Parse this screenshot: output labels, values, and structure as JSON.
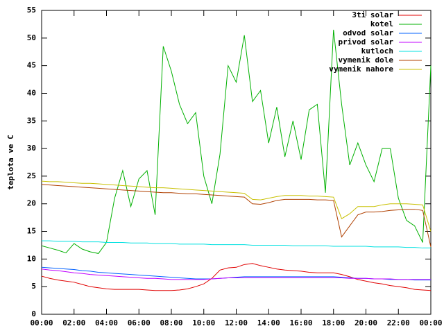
{
  "chart_data": {
    "type": "line",
    "y_label": "teplota ve C",
    "legend": "top right",
    "x": [
      0,
      0.5,
      1,
      1.5,
      2,
      2.5,
      3,
      3.5,
      4,
      4.5,
      5,
      5.5,
      6,
      6.5,
      7,
      7.5,
      8,
      8.5,
      9,
      9.5,
      10,
      10.5,
      11,
      11.5,
      12,
      12.5,
      13,
      13.5,
      14,
      14.5,
      15,
      15.5,
      16,
      16.5,
      17,
      17.5,
      18,
      18.5,
      19,
      19.5,
      20,
      20.5,
      21,
      21.5,
      22,
      22.5,
      23,
      23.5,
      24
    ],
    "xlim": [
      0,
      24
    ],
    "xticks": [
      {
        "value": 0,
        "label": "00:00"
      },
      {
        "value": 2,
        "label": "02:00"
      },
      {
        "value": 4,
        "label": "04:00"
      },
      {
        "value": 6,
        "label": "06:00"
      },
      {
        "value": 8,
        "label": "08:00"
      },
      {
        "value": 10,
        "label": "10:00"
      },
      {
        "value": 12,
        "label": "12:00"
      },
      {
        "value": 14,
        "label": "14:00"
      },
      {
        "value": 16,
        "label": "16:00"
      },
      {
        "value": 18,
        "label": "18:00"
      },
      {
        "value": 20,
        "label": "20:00"
      },
      {
        "value": 22,
        "label": "22:00"
      },
      {
        "value": 24,
        "label": "00:00"
      }
    ],
    "ylim": [
      0,
      55
    ],
    "yticks": [
      0,
      5,
      10,
      15,
      20,
      25,
      30,
      35,
      40,
      45,
      50,
      55
    ],
    "series": [
      {
        "name": "3ti solar",
        "color": "#e00000",
        "values": [
          6.9,
          6.5,
          6.2,
          6,
          5.8,
          5.4,
          5,
          4.8,
          4.6,
          4.5,
          4.5,
          4.5,
          4.5,
          4.4,
          4.3,
          4.3,
          4.3,
          4.4,
          4.6,
          5,
          5.5,
          6.5,
          8,
          8.4,
          8.5,
          9,
          9.2,
          8.8,
          8.5,
          8.2,
          8,
          7.9,
          7.8,
          7.6,
          7.5,
          7.5,
          7.5,
          7.2,
          6.8,
          6.3,
          6,
          5.7,
          5.5,
          5.2,
          5,
          4.8,
          4.5,
          4.4,
          4.3
        ]
      },
      {
        "name": "kotel",
        "color": "#00b000",
        "values": [
          12.4,
          12,
          11.6,
          11.1,
          12.8,
          11.8,
          11.3,
          11,
          13,
          21,
          26,
          19.5,
          24.5,
          26,
          18,
          48.5,
          44,
          38,
          34.5,
          36.5,
          25,
          20,
          29,
          45,
          42,
          50.5,
          38.5,
          40.5,
          31,
          37.5,
          28.5,
          35,
          28,
          37,
          38,
          22,
          51.5,
          38,
          27,
          31,
          27,
          24,
          30,
          30,
          21,
          17,
          16,
          13,
          45
        ]
      },
      {
        "name": "odvod solar",
        "color": "#0060ff",
        "values": [
          8.5,
          8.4,
          8.3,
          8.2,
          8.1,
          7.9,
          7.8,
          7.6,
          7.5,
          7.4,
          7.3,
          7.2,
          7.1,
          7,
          6.9,
          6.8,
          6.7,
          6.6,
          6.5,
          6.4,
          6.4,
          6.4,
          6.5,
          6.6,
          6.7,
          6.8,
          6.8,
          6.8,
          6.8,
          6.8,
          6.8,
          6.8,
          6.8,
          6.8,
          6.8,
          6.8,
          6.8,
          6.7,
          6.6,
          6.5,
          6.5,
          6.4,
          6.4,
          6.3,
          6.3,
          6.3,
          6.2,
          6.2,
          6.2
        ]
      },
      {
        "name": "privod solar",
        "color": "#c000ff",
        "values": [
          8.2,
          8,
          7.9,
          7.7,
          7.5,
          7.4,
          7.2,
          7.1,
          7,
          6.9,
          6.8,
          6.7,
          6.6,
          6.5,
          6.5,
          6.4,
          6.3,
          6.3,
          6.3,
          6.3,
          6.3,
          6.4,
          6.5,
          6.6,
          6.6,
          6.6,
          6.6,
          6.6,
          6.6,
          6.6,
          6.6,
          6.6,
          6.6,
          6.6,
          6.6,
          6.6,
          6.6,
          6.6,
          6.5,
          6.5,
          6.5,
          6.4,
          6.4,
          6.4,
          6.3,
          6.3,
          6.3,
          6.3,
          6.3
        ]
      },
      {
        "name": "kutloch",
        "color": "#00e0e0",
        "values": [
          13.3,
          13.3,
          13.2,
          13.2,
          13.2,
          13.1,
          13.1,
          13.1,
          13,
          13,
          13,
          12.9,
          12.9,
          12.9,
          12.8,
          12.8,
          12.8,
          12.7,
          12.7,
          12.7,
          12.7,
          12.6,
          12.6,
          12.6,
          12.6,
          12.6,
          12.5,
          12.5,
          12.5,
          12.5,
          12.5,
          12.4,
          12.4,
          12.4,
          12.4,
          12.4,
          12.3,
          12.3,
          12.3,
          12.3,
          12.3,
          12.2,
          12.2,
          12.2,
          12.2,
          12.1,
          12.1,
          12,
          12
        ]
      },
      {
        "name": "vymenik dole",
        "color": "#b04000",
        "values": [
          23.5,
          23.4,
          23.3,
          23.2,
          23.1,
          23,
          22.9,
          22.8,
          22.7,
          22.6,
          22.5,
          22.4,
          22.3,
          22.2,
          22.1,
          22,
          22,
          21.9,
          21.8,
          21.8,
          21.7,
          21.6,
          21.5,
          21.4,
          21.3,
          21.2,
          20,
          19.9,
          20.2,
          20.6,
          20.8,
          20.8,
          20.8,
          20.8,
          20.7,
          20.7,
          20.6,
          14,
          16,
          18,
          18.5,
          18.5,
          18.6,
          18.8,
          18.9,
          19,
          19,
          18.8,
          12.2
        ]
      },
      {
        "name": "vymenik nahore",
        "color": "#c8c000",
        "values": [
          24.1,
          24,
          24,
          23.9,
          23.8,
          23.7,
          23.7,
          23.6,
          23.5,
          23.4,
          23.3,
          23.2,
          23.1,
          23,
          22.9,
          22.9,
          22.8,
          22.7,
          22.6,
          22.5,
          22.4,
          22.3,
          22.2,
          22.1,
          22,
          21.9,
          20.8,
          20.7,
          21,
          21.3,
          21.5,
          21.5,
          21.5,
          21.4,
          21.4,
          21.3,
          21.2,
          17.3,
          18.2,
          19.5,
          19.5,
          19.5,
          19.8,
          20,
          20,
          20,
          19.9,
          19.8,
          15
        ]
      }
    ]
  }
}
